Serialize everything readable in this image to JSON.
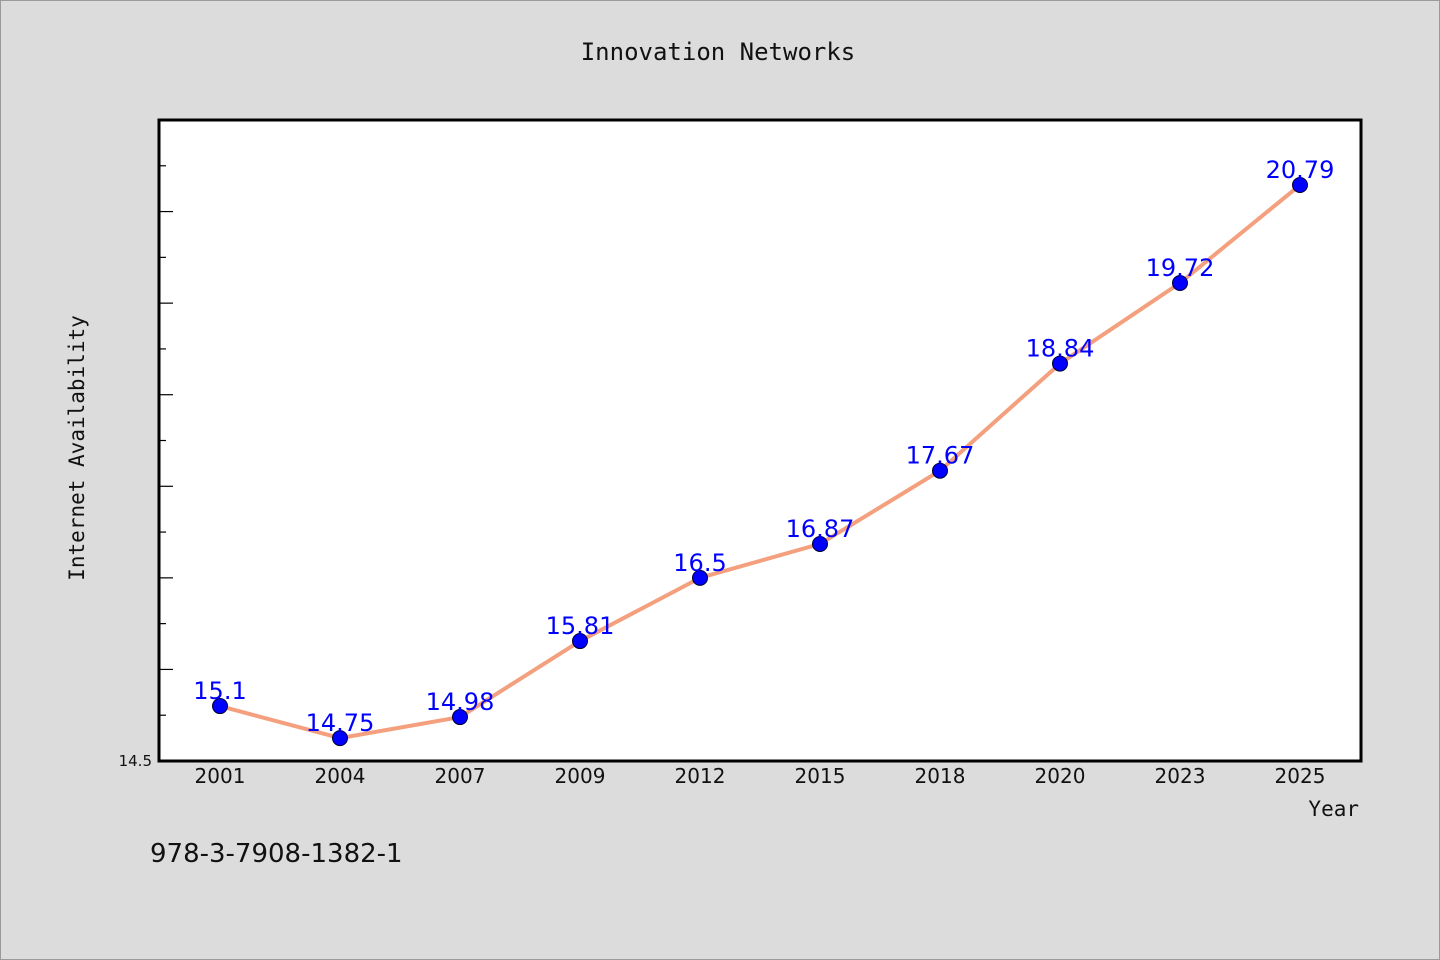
{
  "footer_text": "978-3-7908-1382-1",
  "colors": {
    "background": "#dcdcdc",
    "plot_background": "#ffffff",
    "line": "#f4a07e",
    "marker": "#0000ff",
    "data_label": "#0000ff"
  },
  "chart_data": {
    "type": "line",
    "title": "Innovation Networks",
    "xlabel": "Year",
    "ylabel": "Internet Availability",
    "categories": [
      "2001",
      "2004",
      "2007",
      "2009",
      "2012",
      "2015",
      "2018",
      "2020",
      "2023",
      "2025"
    ],
    "series": [
      {
        "values": [
          15.1,
          14.75,
          14.98,
          15.81,
          16.5,
          16.87,
          17.67,
          18.84,
          19.72,
          20.79
        ]
      }
    ],
    "data_labels": [
      "15.1",
      "14.75",
      "14.98",
      "15.81",
      "16.5",
      "16.87",
      "17.67",
      "18.84",
      "19.72",
      "20.79"
    ],
    "y_tick_labels": [
      "14.5"
    ],
    "ylim": [
      14.5,
      21.5
    ],
    "y_minor_tick_step": 0.5,
    "grid": false,
    "marker": "circle"
  }
}
